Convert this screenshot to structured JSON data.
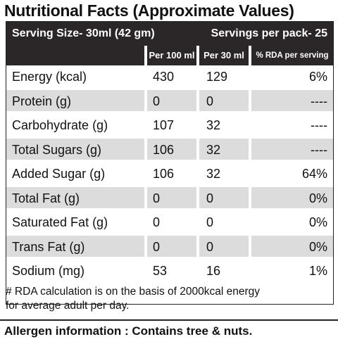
{
  "title": "Nutritional Facts (Approximate Values)",
  "header": {
    "serving_size": "Serving Size-  30ml (42 gm)",
    "servings_per_pack": "Servings per pack- 25",
    "col_per100": "Per 100 ml",
    "col_per30": "Per 30 ml",
    "col_rda": "% RDA per serving"
  },
  "rows": [
    {
      "name": "Energy (kcal)",
      "per100": "430",
      "per30": "129",
      "rda": "6%",
      "shaded": false
    },
    {
      "name": "Protein (g)",
      "per100": "0",
      "per30": "0",
      "rda": "----",
      "shaded": true
    },
    {
      "name": "Carbohydrate (g)",
      "per100": "107",
      "per30": "32",
      "rda": "----",
      "shaded": false
    },
    {
      "name": "Total Sugars (g)",
      "per100": "106",
      "per30": "32",
      "rda": "----",
      "shaded": true
    },
    {
      "name": "Added Sugar (g)",
      "per100": "106",
      "per30": "32",
      "rda": "64%",
      "shaded": false
    },
    {
      "name": "Total Fat (g)",
      "per100": "0",
      "per30": "0",
      "rda": "0%",
      "shaded": true
    },
    {
      "name": "Saturated Fat (g)",
      "per100": "0",
      "per30": "0",
      "rda": "0%",
      "shaded": false
    },
    {
      "name": "Trans Fat (g)",
      "per100": "0",
      "per30": "0",
      "rda": "0%",
      "shaded": true
    },
    {
      "name": "Sodium (mg)",
      "per100": "53",
      "per30": "16",
      "rda": "1%",
      "shaded": false
    }
  ],
  "note": {
    "line1": "# RDA calculation is on the basis of 2000kcal energy",
    "line2": "for average adult per day."
  },
  "allergen": "Allergen information : Contains tree & nuts.",
  "colors": {
    "header_bg": "#2b2728",
    "shade": "#dcdcdc"
  }
}
